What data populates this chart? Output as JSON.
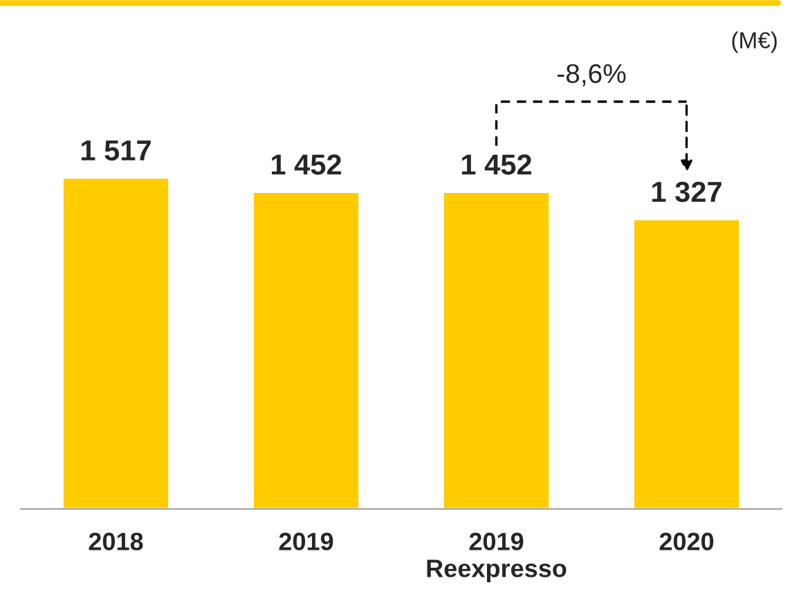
{
  "chart_data": {
    "type": "bar",
    "categories": [
      "2018",
      "2019",
      "2019\nReexpresso",
      "2020"
    ],
    "values": [
      1517,
      1452,
      1452,
      1327
    ],
    "color": "#ffcc00",
    "data_labels": true,
    "annotations": [
      "(M€)",
      "-8,6%"
    ]
  }
}
